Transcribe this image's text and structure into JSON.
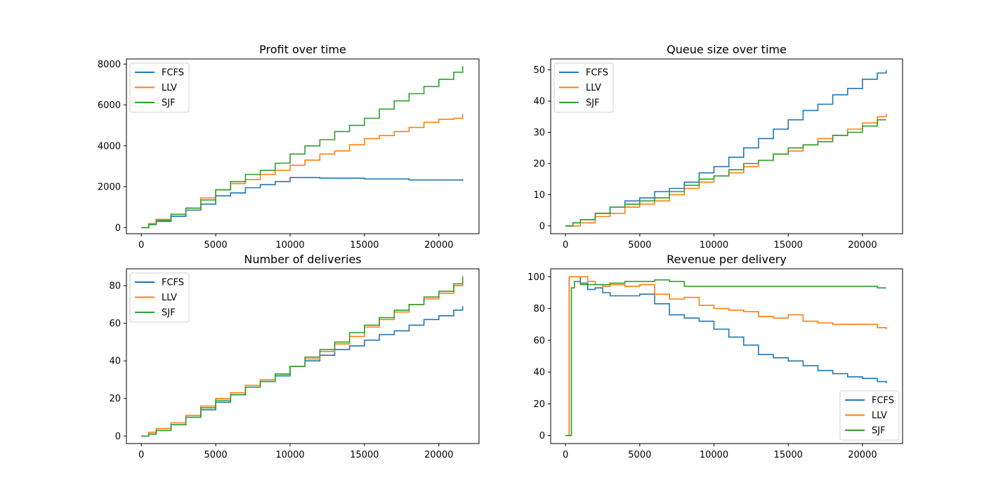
{
  "colors": {
    "FCFS": "#1f77b4",
    "LLV": "#ff7f0e",
    "SJF": "#2ca02c"
  },
  "chart_data": [
    {
      "type": "line",
      "title": "Profit over time",
      "xlim": [
        -1000,
        22700
      ],
      "ylim": [
        -300,
        8250
      ],
      "xticks": [
        0,
        5000,
        10000,
        15000,
        20000
      ],
      "yticks": [
        0,
        2000,
        4000,
        6000,
        8000
      ],
      "legend": "upper-left",
      "series": [
        {
          "name": "FCFS",
          "x": [
            0,
            500,
            1000,
            2000,
            3000,
            4000,
            5000,
            6000,
            7000,
            8000,
            9000,
            10000,
            12000,
            15000,
            18000,
            21600
          ],
          "y": [
            0,
            150,
            300,
            550,
            850,
            1150,
            1550,
            1700,
            1950,
            2100,
            2250,
            2450,
            2420,
            2380,
            2330,
            2280
          ]
        },
        {
          "name": "LLV",
          "x": [
            0,
            500,
            1000,
            2000,
            3000,
            4000,
            5000,
            6000,
            7000,
            8000,
            9000,
            10000,
            11000,
            12000,
            13000,
            14000,
            15000,
            16000,
            17000,
            18000,
            19000,
            20000,
            21000,
            21600
          ],
          "y": [
            0,
            200,
            400,
            650,
            950,
            1450,
            1850,
            2150,
            2350,
            2600,
            2800,
            3050,
            3300,
            3600,
            3750,
            4050,
            4350,
            4500,
            4700,
            4900,
            5150,
            5300,
            5350,
            5550
          ]
        },
        {
          "name": "SJF",
          "x": [
            0,
            500,
            1000,
            2000,
            3000,
            4000,
            5000,
            6000,
            7000,
            8000,
            9000,
            10000,
            11000,
            12000,
            13000,
            14000,
            15000,
            16000,
            17000,
            18000,
            19000,
            20000,
            21000,
            21600
          ],
          "y": [
            0,
            150,
            350,
            650,
            950,
            1350,
            1850,
            2250,
            2600,
            2800,
            3150,
            3600,
            4000,
            4300,
            4700,
            5000,
            5350,
            5800,
            6200,
            6550,
            6900,
            7250,
            7600,
            7900
          ]
        }
      ]
    },
    {
      "type": "line",
      "title": "Queue size over time",
      "xlim": [
        -1000,
        22700
      ],
      "ylim": [
        -2.5,
        53.5
      ],
      "xticks": [
        0,
        5000,
        10000,
        15000,
        20000
      ],
      "yticks": [
        0,
        10,
        20,
        30,
        40,
        50
      ],
      "legend": "upper-left",
      "series": [
        {
          "name": "FCFS",
          "x": [
            0,
            500,
            1000,
            2000,
            3000,
            4000,
            5000,
            6000,
            7000,
            8000,
            9000,
            10000,
            11000,
            12000,
            13000,
            14000,
            15000,
            16000,
            17000,
            18000,
            19000,
            20000,
            21000,
            21600
          ],
          "y": [
            0,
            1,
            2,
            4,
            6,
            8,
            9,
            11,
            12,
            14,
            17,
            19,
            22,
            25,
            28,
            31,
            34,
            37,
            39,
            42,
            44,
            47,
            49,
            50
          ]
        },
        {
          "name": "LLV",
          "x": [
            0,
            500,
            1000,
            2000,
            3000,
            4000,
            5000,
            6000,
            7000,
            8000,
            9000,
            10000,
            11000,
            12000,
            13000,
            14000,
            15000,
            16000,
            17000,
            18000,
            19000,
            20000,
            21000,
            21600
          ],
          "y": [
            0,
            0,
            1,
            3,
            4,
            6,
            7,
            8,
            10,
            12,
            14,
            16,
            17,
            19,
            21,
            23,
            24,
            26,
            28,
            29,
            31,
            33,
            35,
            36
          ]
        },
        {
          "name": "SJF",
          "x": [
            0,
            500,
            1000,
            2000,
            3000,
            4000,
            5000,
            6000,
            7000,
            8000,
            9000,
            10000,
            11000,
            12000,
            13000,
            14000,
            15000,
            16000,
            17000,
            18000,
            19000,
            20000,
            21000,
            21600
          ],
          "y": [
            0,
            1,
            2,
            4,
            6,
            7,
            8,
            9,
            11,
            13,
            15,
            16,
            18,
            20,
            21,
            23,
            25,
            26,
            27,
            29,
            30,
            32,
            34,
            34
          ]
        }
      ]
    },
    {
      "type": "line",
      "title": "Number of deliveries",
      "xlim": [
        -1000,
        22700
      ],
      "ylim": [
        -4,
        89
      ],
      "xticks": [
        0,
        5000,
        10000,
        15000,
        20000
      ],
      "yticks": [
        0,
        20,
        40,
        60,
        80
      ],
      "legend": "upper-left",
      "series": [
        {
          "name": "FCFS",
          "x": [
            0,
            500,
            1000,
            2000,
            3000,
            4000,
            5000,
            6000,
            7000,
            8000,
            9000,
            10000,
            11000,
            12000,
            13000,
            14000,
            15000,
            16000,
            17000,
            18000,
            19000,
            20000,
            21000,
            21600
          ],
          "y": [
            0,
            1,
            3,
            6,
            10,
            14,
            18,
            22,
            26,
            29,
            32,
            37,
            40,
            43,
            46,
            48,
            51,
            54,
            56,
            59,
            62,
            64,
            67,
            69
          ]
        },
        {
          "name": "LLV",
          "x": [
            0,
            500,
            1000,
            2000,
            3000,
            4000,
            5000,
            6000,
            7000,
            8000,
            9000,
            10000,
            11000,
            12000,
            13000,
            14000,
            15000,
            16000,
            17000,
            18000,
            19000,
            20000,
            21000,
            21600
          ],
          "y": [
            0,
            2,
            4,
            7,
            11,
            16,
            20,
            23,
            27,
            30,
            33,
            37,
            41,
            45,
            49,
            53,
            58,
            62,
            66,
            70,
            73,
            76,
            80,
            83
          ]
        },
        {
          "name": "SJF",
          "x": [
            0,
            500,
            1000,
            2000,
            3000,
            4000,
            5000,
            6000,
            7000,
            8000,
            9000,
            10000,
            11000,
            12000,
            13000,
            14000,
            15000,
            16000,
            17000,
            18000,
            19000,
            20000,
            21000,
            21600
          ],
          "y": [
            0,
            1,
            3,
            6,
            10,
            15,
            19,
            22,
            26,
            29,
            33,
            37,
            42,
            46,
            50,
            55,
            59,
            63,
            67,
            70,
            74,
            77,
            81,
            85
          ]
        }
      ]
    },
    {
      "type": "line",
      "title": "Revenue per delivery",
      "xlim": [
        -1000,
        22700
      ],
      "ylim": [
        -5,
        105
      ],
      "xticks": [
        0,
        5000,
        10000,
        15000,
        20000
      ],
      "yticks": [
        0,
        20,
        40,
        60,
        80,
        100
      ],
      "legend": "lower-right",
      "series": [
        {
          "name": "FCFS",
          "x": [
            0,
            200,
            250,
            500,
            1000,
            1500,
            2000,
            2500,
            3000,
            4000,
            5000,
            6000,
            7000,
            8000,
            9000,
            10000,
            11000,
            12000,
            13000,
            14000,
            15000,
            16000,
            17000,
            18000,
            19000,
            20000,
            21000,
            21600
          ],
          "y": [
            0,
            0,
            100,
            100,
            96,
            92,
            93,
            90,
            88,
            88,
            89,
            83,
            76,
            74,
            72,
            67,
            62,
            57,
            51,
            49,
            47,
            44,
            41,
            39,
            37,
            36,
            34,
            33
          ]
        },
        {
          "name": "LLV",
          "x": [
            0,
            200,
            250,
            500,
            1000,
            1500,
            2000,
            2500,
            3000,
            4000,
            5000,
            6000,
            7000,
            8000,
            9000,
            10000,
            11000,
            12000,
            13000,
            14000,
            15000,
            16000,
            17000,
            18000,
            19000,
            20000,
            21000,
            21600
          ],
          "y": [
            0,
            0,
            100,
            100,
            100,
            97,
            95,
            94,
            95,
            94,
            95,
            89,
            86,
            87,
            82,
            80,
            79,
            78,
            75,
            74,
            76,
            72,
            71,
            70,
            70,
            70,
            68,
            67
          ]
        },
        {
          "name": "SJF",
          "x": [
            0,
            350,
            400,
            600,
            1000,
            2000,
            3000,
            4000,
            5000,
            6000,
            7000,
            8000,
            9000,
            10000,
            12000,
            14000,
            16000,
            18000,
            20000,
            21000,
            21600
          ],
          "y": [
            0,
            0,
            93,
            97,
            95,
            95,
            96,
            97,
            97,
            98,
            97,
            94,
            94,
            94,
            94,
            94,
            94,
            94,
            94,
            93,
            93
          ]
        }
      ]
    }
  ]
}
